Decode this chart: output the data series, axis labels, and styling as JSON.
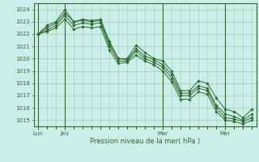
{
  "background_color": "#cceee8",
  "grid_color": "#99ccbb",
  "line_color": "#2d6a2d",
  "marker_color": "#2d6a2d",
  "xlabel": "Pression niveau de la mer( hPa )",
  "ylim": [
    1014.5,
    1024.5
  ],
  "yticks": [
    1015,
    1016,
    1017,
    1018,
    1019,
    1020,
    1021,
    1022,
    1023,
    1024
  ],
  "xtick_labels": [
    "Lun",
    "Jeu",
    "Mar",
    "Mer"
  ],
  "vline_positions": [
    0,
    3,
    14,
    21
  ],
  "xtick_positions": [
    0,
    3,
    14,
    21
  ],
  "series": [
    [
      1022.0,
      1022.7,
      1023.0,
      1024.0,
      1023.0,
      1023.2,
      1023.1,
      1023.2,
      1021.4,
      1020.0,
      1020.0,
      1021.1,
      1020.5,
      1020.0,
      1019.8,
      1019.0,
      1017.4,
      1017.4,
      1018.2,
      1018.0,
      1016.8,
      1015.9,
      1015.7,
      1015.2,
      1015.9
    ],
    [
      1022.0,
      1022.5,
      1022.9,
      1023.7,
      1023.0,
      1023.1,
      1023.0,
      1023.1,
      1021.2,
      1020.0,
      1019.9,
      1020.8,
      1020.2,
      1019.9,
      1019.5,
      1018.7,
      1017.2,
      1017.2,
      1017.8,
      1017.6,
      1016.2,
      1015.5,
      1015.3,
      1015.0,
      1015.5
    ],
    [
      1022.0,
      1022.3,
      1022.7,
      1023.5,
      1022.7,
      1022.9,
      1022.8,
      1022.9,
      1021.0,
      1019.8,
      1019.8,
      1020.6,
      1020.0,
      1019.7,
      1019.3,
      1018.4,
      1017.0,
      1017.0,
      1017.6,
      1017.4,
      1016.0,
      1015.2,
      1015.1,
      1014.9,
      1015.2
    ],
    [
      1022.0,
      1022.2,
      1022.5,
      1023.2,
      1022.4,
      1022.6,
      1022.5,
      1022.6,
      1020.7,
      1019.6,
      1019.7,
      1020.3,
      1019.8,
      1019.5,
      1019.0,
      1018.1,
      1016.7,
      1016.7,
      1017.3,
      1017.1,
      1015.7,
      1015.0,
      1014.9,
      1014.7,
      1015.0
    ]
  ],
  "n_points": 25,
  "figsize": [
    3.2,
    2.0
  ],
  "dpi": 100
}
